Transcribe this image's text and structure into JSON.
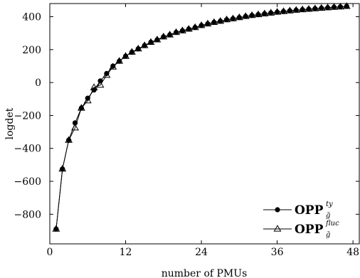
{
  "chart_data": {
    "type": "line",
    "xlabel": "number of PMUs",
    "ylabel": "logdet",
    "xlim": [
      0,
      49
    ],
    "ylim": [
      -980,
      480
    ],
    "xticks": [
      0,
      12,
      24,
      36,
      48
    ],
    "yticks": [
      -800,
      -600,
      -400,
      -200,
      0,
      200,
      400
    ],
    "grid": false,
    "legend_position": "bottom-right",
    "series": [
      {
        "name": "OPP",
        "name_sup": "ty",
        "name_sub": "ḡ",
        "marker": "circle",
        "x": [
          1,
          2,
          3,
          4,
          5,
          6,
          7,
          8,
          9,
          10,
          11,
          12,
          13,
          14,
          15,
          16,
          17,
          18,
          19,
          20,
          21,
          22,
          23,
          24,
          25,
          26,
          27,
          28,
          29,
          30,
          31,
          32,
          33,
          34,
          35,
          36,
          37,
          38,
          39,
          40,
          41,
          42,
          43,
          44,
          45,
          46,
          47
        ],
        "values": [
          -890,
          -525,
          -350,
          -245,
          -155,
          -95,
          -45,
          10,
          55,
          100,
          130,
          160,
          185,
          205,
          225,
          245,
          260,
          278,
          290,
          305,
          315,
          325,
          335,
          347,
          357,
          366,
          373,
          382,
          388,
          395,
          402,
          408,
          413,
          418,
          423,
          428,
          432,
          436,
          440,
          443,
          446,
          449,
          452,
          455,
          458,
          460,
          463
        ]
      },
      {
        "name": "OPP",
        "name_sup": "fluc",
        "name_sub": "ḡ",
        "marker": "triangle",
        "x": [
          1,
          2,
          3,
          4,
          5,
          6,
          7,
          8,
          9,
          10,
          11,
          12,
          13,
          14,
          15,
          16,
          17,
          18,
          19,
          20,
          21,
          22,
          23,
          24,
          25,
          26,
          27,
          28,
          29,
          30,
          31,
          32,
          33,
          34,
          35,
          36,
          37,
          38,
          39,
          40,
          41,
          42,
          43,
          44,
          45,
          46,
          47
        ],
        "values": [
          -890,
          -525,
          -350,
          -275,
          -155,
          -110,
          -30,
          -15,
          45,
          95,
          130,
          160,
          185,
          205,
          225,
          245,
          260,
          278,
          290,
          305,
          315,
          325,
          335,
          347,
          357,
          366,
          373,
          382,
          388,
          395,
          402,
          408,
          413,
          418,
          423,
          428,
          432,
          436,
          440,
          443,
          446,
          449,
          452,
          455,
          458,
          460,
          463
        ]
      }
    ]
  }
}
